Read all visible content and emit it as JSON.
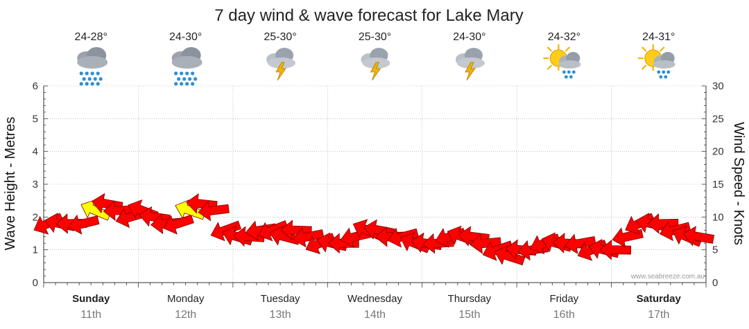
{
  "title": "7 day wind & wave forecast for Lake Mary",
  "credit": "www.seabreeze.com.au",
  "days": [
    {
      "name": "Sunday",
      "date": "11th",
      "temp": "24-28°",
      "icon": "rain-cloud-icon",
      "bold": true
    },
    {
      "name": "Monday",
      "date": "12th",
      "temp": "24-30°",
      "icon": "rain-cloud-icon",
      "bold": false
    },
    {
      "name": "Tuesday",
      "date": "13th",
      "temp": "25-30°",
      "icon": "thunderstorm-icon",
      "bold": false
    },
    {
      "name": "Wednesday",
      "date": "14th",
      "temp": "25-30°",
      "icon": "thunderstorm-icon",
      "bold": false
    },
    {
      "name": "Thursday",
      "date": "15th",
      "temp": "24-30°",
      "icon": "thunderstorm-icon",
      "bold": false
    },
    {
      "name": "Friday",
      "date": "16th",
      "temp": "24-32°",
      "icon": "sun-shower-icon",
      "bold": false
    },
    {
      "name": "Saturday",
      "date": "17th",
      "temp": "24-31°",
      "icon": "sun-shower-icon",
      "bold": true
    }
  ],
  "colors": {
    "wind_arrow": "#ff0000",
    "wind_arrow_strong": "#ffff00",
    "grid": "#999999",
    "axis": "#333333"
  },
  "chart_data": {
    "type": "line",
    "title": "7 day wind & wave forecast for Lake Mary",
    "ylabel_left": "Wave Height - Metres",
    "ylabel_right": "Wind Speed - Knots",
    "ylim_left": [
      0,
      6
    ],
    "ylim_right": [
      0,
      30
    ],
    "yticks_left": [
      "0",
      "1",
      "2",
      "3",
      "4",
      "5",
      "6"
    ],
    "yticks_right": [
      "0",
      "5",
      "10",
      "15",
      "20",
      "25",
      "30"
    ],
    "categories": [
      "Sunday 11th",
      "Monday 12th",
      "Tuesday 13th",
      "Wednesday 14th",
      "Thursday 15th",
      "Friday 16th",
      "Saturday 17th"
    ],
    "grid": true,
    "series": [
      {
        "name": "Wind",
        "x_hours": [
          0,
          3,
          6,
          9,
          12,
          15,
          18,
          21,
          24,
          27,
          30,
          33,
          36,
          39,
          42,
          45,
          48,
          51,
          54,
          57,
          60,
          63,
          66,
          69,
          72,
          75,
          78,
          81,
          84,
          87,
          90,
          93,
          96,
          99,
          102,
          105,
          108,
          111,
          114,
          117,
          120,
          123,
          126,
          129,
          132,
          135,
          138,
          141,
          144,
          147,
          150,
          153,
          156,
          159,
          162,
          165
        ],
        "knots": [
          9,
          9,
          9,
          9,
          11,
          12,
          11,
          10,
          11,
          10,
          9,
          9,
          11,
          12,
          11,
          8,
          7,
          7,
          8,
          8,
          7,
          8,
          7,
          6,
          6,
          6,
          7,
          8,
          8,
          7,
          7,
          6,
          6,
          6,
          7,
          7,
          7,
          6,
          5,
          4,
          5,
          5,
          6,
          6,
          6,
          6,
          5,
          5,
          5,
          7,
          9,
          9,
          9,
          8,
          7,
          7
        ],
        "strong": [
          false,
          false,
          false,
          false,
          true,
          false,
          false,
          false,
          false,
          false,
          false,
          false,
          true,
          false,
          false,
          false,
          false,
          false,
          false,
          false,
          false,
          false,
          false,
          false,
          false,
          false,
          false,
          false,
          false,
          false,
          false,
          false,
          false,
          false,
          false,
          false,
          false,
          false,
          false,
          false,
          false,
          false,
          false,
          false,
          false,
          false,
          false,
          false,
          false,
          false,
          false,
          false,
          false,
          false,
          false,
          false
        ]
      }
    ]
  }
}
